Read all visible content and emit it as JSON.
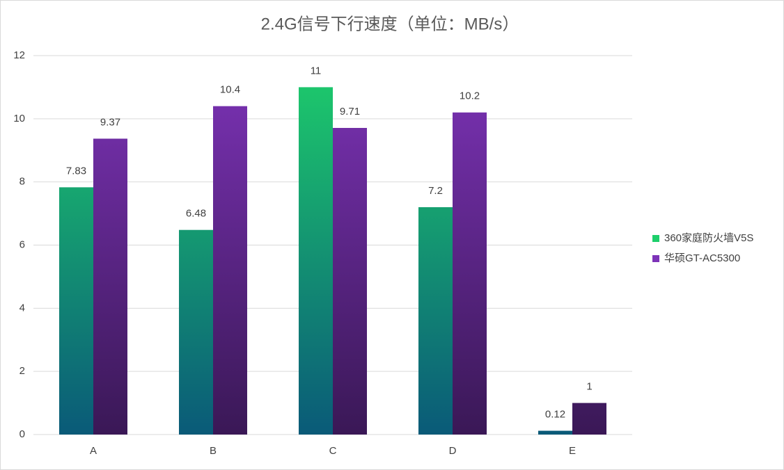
{
  "chart_data": {
    "type": "bar",
    "title": "2.4G信号下行速度（单位：MB/s）",
    "categories": [
      "A",
      "B",
      "C",
      "D",
      "E"
    ],
    "series": [
      {
        "name": "360家庭防火墙V5S",
        "color": "#1ecf6b",
        "gradient_end": "#0a5a78",
        "values": [
          7.83,
          6.48,
          11,
          7.2,
          0.12
        ]
      },
      {
        "name": "华硕GT-AC5300",
        "color": "#7d33b8",
        "gradient_end": "#3a1856",
        "values": [
          9.37,
          10.4,
          9.71,
          10.2,
          1
        ]
      }
    ],
    "ylim": [
      0,
      12
    ],
    "yticks": [
      0,
      2,
      4,
      6,
      8,
      10,
      12
    ],
    "grid": true,
    "legend": "right"
  }
}
